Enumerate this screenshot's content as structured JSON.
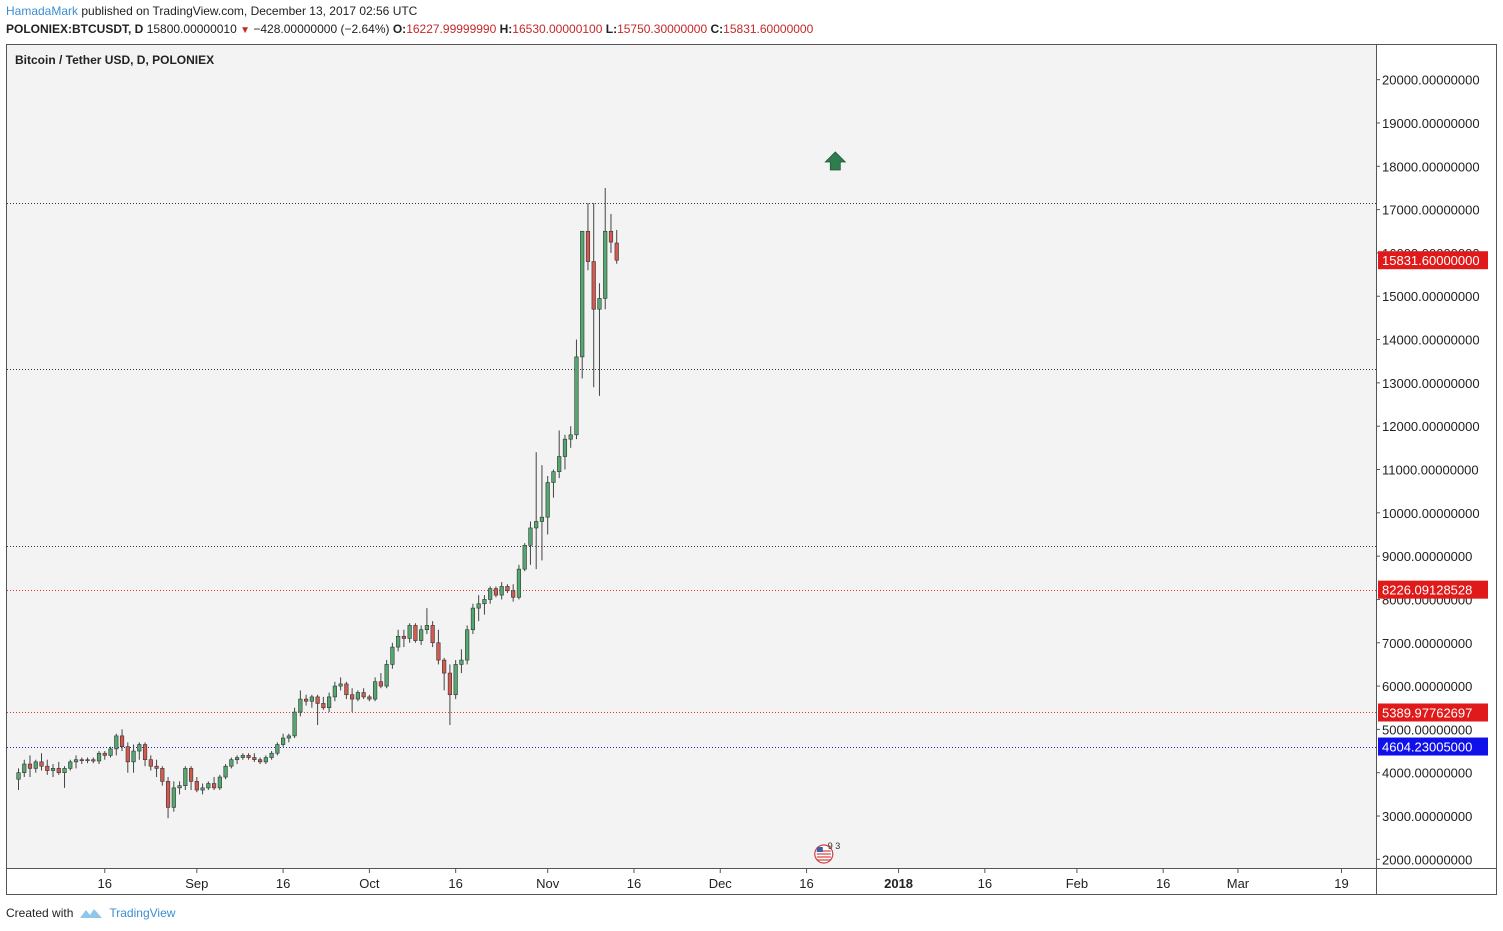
{
  "header": {
    "author": "HamadaMark",
    "published": "published on TradingView.com, December 13, 2017 02:56 UTC",
    "symbol": "POLONIEX:BTCUSDT, D",
    "last": "15800.00000010",
    "change": "−428.00000000 (−2.64%)",
    "o_label": "O:",
    "o_value": "16227.99999990",
    "h_label": "H:",
    "h_value": "16530.00000100",
    "l_label": "L:",
    "l_value": "15750.30000000",
    "c_label": "C:",
    "c_value": "15831.60000000"
  },
  "footer": {
    "created": "Created with",
    "brand": "TradingView"
  },
  "colors": {
    "up": "#53a86f",
    "down": "#d25a4f",
    "bg": "#f3f3f3",
    "price_label": "#e01a1a",
    "support_label": "#1010e8",
    "axis_text": "#222222",
    "arrow": "#2e7d4f"
  },
  "chart_data": {
    "type": "candlestick",
    "title": "Bitcoin / Tether USD, D, POLONIEX",
    "ylim": [
      1800,
      20800
    ],
    "y_ticks": [
      2000,
      3000,
      4000,
      5000,
      6000,
      7000,
      8000,
      9000,
      10000,
      11000,
      12000,
      13000,
      14000,
      15000,
      16000,
      17000,
      18000,
      19000,
      20000
    ],
    "y_tick_labels": [
      "2000.00000000",
      "3000.00000000",
      "4000.00000000",
      "5000.00000000",
      "6000.00000000",
      "7000.00000000",
      "8000.00000000",
      "9000.00000000",
      "10000.00000000",
      "11000.00000000",
      "12000.00000000",
      "13000.00000000",
      "14000.00000000",
      "15000.00000000",
      "16000.00000000",
      "17000.00000000",
      "18000.00000000",
      "19000.00000000",
      "20000.00000000"
    ],
    "x_ticks": [
      {
        "label": "16",
        "day": 15
      },
      {
        "label": "Sep",
        "day": 31
      },
      {
        "label": "16",
        "day": 46
      },
      {
        "label": "Oct",
        "day": 61
      },
      {
        "label": "16",
        "day": 76
      },
      {
        "label": "Nov",
        "day": 92
      },
      {
        "label": "16",
        "day": 107
      },
      {
        "label": "Dec",
        "day": 122
      },
      {
        "label": "16",
        "day": 137
      },
      {
        "label": "2018",
        "day": 153,
        "bold": true
      },
      {
        "label": "16",
        "day": 168
      },
      {
        "label": "Feb",
        "day": 184
      },
      {
        "label": "16",
        "day": 199
      },
      {
        "label": "Mar",
        "day": 212
      },
      {
        "label": "19",
        "day": 230
      }
    ],
    "horizontal_lines": [
      {
        "value": 17150,
        "style": "black-dotted"
      },
      {
        "value": 13330,
        "style": "black-dotted"
      },
      {
        "value": 9230,
        "style": "black-dotted"
      },
      {
        "value": 8226.09128528,
        "style": "red-dotted"
      },
      {
        "value": 5389.97762697,
        "style": "red-dotted"
      },
      {
        "value": 4604.23005,
        "style": "blue-dotted"
      }
    ],
    "price_labels": [
      {
        "value": 15831.6,
        "label": "15831.60000000",
        "color": "red"
      },
      {
        "value": 8226.09128528,
        "label": "8226.09128528",
        "color": "red"
      },
      {
        "value": 5389.97762697,
        "label": "5389.97762697",
        "color": "red"
      },
      {
        "value": 4604.23005,
        "label": "4604.23005000",
        "color": "blue"
      }
    ],
    "arrow": {
      "day": 142,
      "value": 18100,
      "direction": "up"
    },
    "event_marker": {
      "day": 140,
      "label": "9 3"
    },
    "candles": [
      [
        0,
        3850,
        4100,
        3600,
        4000
      ],
      [
        1,
        4000,
        4300,
        3900,
        4200
      ],
      [
        2,
        4200,
        4400,
        3900,
        4100
      ],
      [
        3,
        4100,
        4300,
        4000,
        4250
      ],
      [
        4,
        4250,
        4450,
        4050,
        4150
      ],
      [
        5,
        4150,
        4300,
        3950,
        4050
      ],
      [
        6,
        4050,
        4200,
        3900,
        4100
      ],
      [
        7,
        4100,
        4250,
        3950,
        4000
      ],
      [
        8,
        4000,
        4150,
        3650,
        4100
      ],
      [
        9,
        4100,
        4300,
        4050,
        4250
      ],
      [
        10,
        4250,
        4400,
        4100,
        4300
      ],
      [
        11,
        4300,
        4350,
        4200,
        4280
      ],
      [
        12,
        4280,
        4350,
        4220,
        4300
      ],
      [
        13,
        4300,
        4350,
        4220,
        4270
      ],
      [
        14,
        4270,
        4500,
        4200,
        4450
      ],
      [
        15,
        4450,
        4500,
        4300,
        4400
      ],
      [
        16,
        4400,
        4600,
        4350,
        4550
      ],
      [
        17,
        4550,
        4900,
        4400,
        4850
      ],
      [
        18,
        4850,
        5000,
        4500,
        4600
      ],
      [
        19,
        4600,
        4700,
        4000,
        4250
      ],
      [
        20,
        4250,
        4650,
        4000,
        4500
      ],
      [
        21,
        4500,
        4700,
        4300,
        4650
      ],
      [
        22,
        4650,
        4700,
        4150,
        4300
      ],
      [
        23,
        4300,
        4400,
        4050,
        4150
      ],
      [
        24,
        4150,
        4300,
        3900,
        4100
      ],
      [
        25,
        4100,
        4150,
        3700,
        3800
      ],
      [
        26,
        3800,
        3900,
        2950,
        3200
      ],
      [
        27,
        3200,
        3800,
        3100,
        3650
      ],
      [
        28,
        3650,
        3800,
        3500,
        3700
      ],
      [
        29,
        3700,
        4150,
        3600,
        4100
      ],
      [
        30,
        4100,
        4150,
        3600,
        3800
      ],
      [
        31,
        3800,
        3900,
        3550,
        3600
      ],
      [
        32,
        3600,
        3750,
        3500,
        3650
      ],
      [
        33,
        3650,
        3800,
        3600,
        3750
      ],
      [
        34,
        3750,
        3900,
        3600,
        3650
      ],
      [
        35,
        3650,
        3950,
        3600,
        3900
      ],
      [
        36,
        3900,
        4200,
        3850,
        4150
      ],
      [
        37,
        4150,
        4350,
        4100,
        4300
      ],
      [
        38,
        4300,
        4400,
        4200,
        4350
      ],
      [
        39,
        4350,
        4450,
        4300,
        4400
      ],
      [
        40,
        4400,
        4450,
        4300,
        4350
      ],
      [
        41,
        4350,
        4450,
        4250,
        4300
      ],
      [
        42,
        4300,
        4350,
        4200,
        4250
      ],
      [
        43,
        4250,
        4400,
        4200,
        4350
      ],
      [
        44,
        4350,
        4500,
        4300,
        4450
      ],
      [
        45,
        4450,
        4700,
        4400,
        4650
      ],
      [
        46,
        4650,
        4900,
        4600,
        4800
      ],
      [
        47,
        4800,
        4900,
        4700,
        4850
      ],
      [
        48,
        4850,
        5500,
        4800,
        5400
      ],
      [
        49,
        5400,
        5900,
        5300,
        5700
      ],
      [
        50,
        5700,
        5800,
        5550,
        5650
      ],
      [
        51,
        5650,
        5800,
        5500,
        5750
      ],
      [
        52,
        5750,
        5800,
        5100,
        5600
      ],
      [
        53,
        5600,
        5750,
        5450,
        5500
      ],
      [
        54,
        5500,
        5850,
        5400,
        5750
      ],
      [
        55,
        5750,
        6100,
        5650,
        6000
      ],
      [
        56,
        6000,
        6200,
        5900,
        6050
      ],
      [
        57,
        6050,
        6100,
        5700,
        5800
      ],
      [
        58,
        5800,
        5950,
        5400,
        5700
      ],
      [
        59,
        5700,
        5900,
        5650,
        5850
      ],
      [
        60,
        5850,
        5950,
        5700,
        5750
      ],
      [
        61,
        5750,
        5800,
        5650,
        5700
      ],
      [
        62,
        5700,
        6200,
        5650,
        6100
      ],
      [
        63,
        6100,
        6300,
        5950,
        6000
      ],
      [
        64,
        6000,
        6600,
        5950,
        6500
      ],
      [
        65,
        6500,
        7000,
        6400,
        6900
      ],
      [
        66,
        6900,
        7300,
        6800,
        7150
      ],
      [
        67,
        7150,
        7300,
        6900,
        7100
      ],
      [
        68,
        7100,
        7450,
        7000,
        7400
      ],
      [
        69,
        7400,
        7450,
        7000,
        7050
      ],
      [
        70,
        7050,
        7400,
        6950,
        7300
      ],
      [
        71,
        7300,
        7800,
        7200,
        7400
      ],
      [
        72,
        7400,
        7500,
        6900,
        7000
      ],
      [
        73,
        7000,
        7300,
        6500,
        6600
      ],
      [
        74,
        6600,
        6650,
        5900,
        6300
      ],
      [
        75,
        6300,
        6500,
        5100,
        5800
      ],
      [
        76,
        5800,
        6600,
        5700,
        6500
      ],
      [
        77,
        6500,
        6850,
        6300,
        6600
      ],
      [
        78,
        6600,
        7400,
        6500,
        7300
      ],
      [
        79,
        7300,
        7900,
        7200,
        7800
      ],
      [
        80,
        7800,
        8100,
        7500,
        7900
      ],
      [
        81,
        7900,
        8100,
        7650,
        8000
      ],
      [
        82,
        8000,
        8300,
        7900,
        8250
      ],
      [
        83,
        8250,
        8300,
        8050,
        8100
      ],
      [
        84,
        8100,
        8400,
        8000,
        8300
      ],
      [
        85,
        8300,
        8350,
        8150,
        8200
      ],
      [
        86,
        8200,
        8350,
        7950,
        8050
      ],
      [
        87,
        8050,
        8800,
        8000,
        8700
      ],
      [
        88,
        8700,
        9300,
        8650,
        9250
      ],
      [
        89,
        9250,
        9800,
        8800,
        9650
      ],
      [
        90,
        9650,
        11400,
        8700,
        9800
      ],
      [
        91,
        9800,
        11100,
        8900,
        9900
      ],
      [
        92,
        9900,
        10850,
        9500,
        10700
      ],
      [
        93,
        10700,
        11000,
        10350,
        10950
      ],
      [
        94,
        10950,
        11900,
        10800,
        11300
      ],
      [
        95,
        11300,
        11800,
        11000,
        11700
      ],
      [
        96,
        11700,
        12000,
        11500,
        11800
      ],
      [
        97,
        11800,
        14000,
        11700,
        13600
      ],
      [
        98,
        13600,
        16500,
        13100,
        16500
      ],
      [
        99,
        16500,
        17150,
        15600,
        15800
      ],
      [
        100,
        15800,
        17150,
        12900,
        14700
      ],
      [
        101,
        14700,
        15300,
        12700,
        14950
      ],
      [
        102,
        14950,
        17500,
        14700,
        16500
      ],
      [
        103,
        16500,
        16900,
        16000,
        16250
      ],
      [
        104,
        16228,
        16530,
        15750,
        15832
      ]
    ]
  }
}
